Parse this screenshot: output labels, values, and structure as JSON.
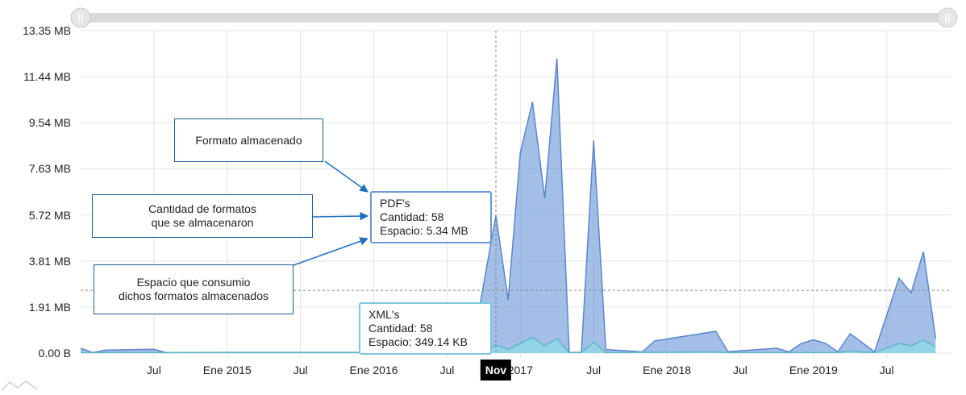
{
  "chart_data": {
    "type": "area",
    "y_ticks": [
      "0.00 B",
      "1.91 MB",
      "3.81 MB",
      "5.72 MB",
      "7.63 MB",
      "9.54 MB",
      "11.44 MB",
      "13.35 MB"
    ],
    "ylim_mb": [
      0,
      13.35
    ],
    "x_ticks": [
      "Jul",
      "Ene 2015",
      "Jul",
      "Ene 2016",
      "Jul",
      "Nov",
      "2017",
      "Jul",
      "Ene 2018",
      "Jul",
      "Ene 2019",
      "Jul"
    ],
    "grid": true,
    "series": [
      {
        "color": "#6c97d8",
        "points": [
          [
            "2014-01",
            0.2
          ],
          [
            "2014-02",
            0.02
          ],
          [
            "2014-03",
            0.12
          ],
          [
            "2014-05",
            0.14
          ],
          [
            "2014-07",
            0.16
          ],
          [
            "2014-08",
            0.02
          ],
          [
            "2015-01",
            0.03
          ],
          [
            "2016-09",
            0.03
          ],
          [
            "2016-11",
            5.7
          ],
          [
            "2016-12",
            2.2
          ],
          [
            "2017-01",
            8.3
          ],
          [
            "2017-02",
            10.4
          ],
          [
            "2017-03",
            6.4
          ],
          [
            "2017-04",
            12.2
          ],
          [
            "2017-05",
            0.03
          ],
          [
            "2017-06",
            0.03
          ],
          [
            "2017-07",
            8.8
          ],
          [
            "2017-08",
            0.15
          ],
          [
            "2017-11",
            0.05
          ],
          [
            "2017-12",
            0.5
          ],
          [
            "2018-05",
            0.9
          ],
          [
            "2018-06",
            0.06
          ],
          [
            "2018-10",
            0.2
          ],
          [
            "2018-11",
            0.05
          ],
          [
            "2018-12",
            0.4
          ],
          [
            "2019-01",
            0.55
          ],
          [
            "2019-02",
            0.4
          ],
          [
            "2019-03",
            0.05
          ],
          [
            "2019-04",
            0.8
          ],
          [
            "2019-06",
            0.05
          ],
          [
            "2019-08",
            3.1
          ],
          [
            "2019-09",
            2.5
          ],
          [
            "2019-10",
            4.2
          ],
          [
            "2019-11",
            0.6
          ]
        ]
      },
      {
        "color": "#8fd6e4",
        "points": [
          [
            "2014-01",
            0.02
          ],
          [
            "2016-10",
            0.02
          ],
          [
            "2016-11",
            0.34
          ],
          [
            "2016-12",
            0.15
          ],
          [
            "2017-02",
            0.65
          ],
          [
            "2017-03",
            0.3
          ],
          [
            "2017-04",
            0.6
          ],
          [
            "2017-05",
            0.02
          ],
          [
            "2017-06",
            0.02
          ],
          [
            "2017-07",
            0.45
          ],
          [
            "2017-08",
            0.02
          ],
          [
            "2018-05",
            0.05
          ],
          [
            "2018-06",
            0.02
          ],
          [
            "2019-03",
            0.02
          ],
          [
            "2019-04",
            0.08
          ],
          [
            "2019-06",
            0.02
          ],
          [
            "2019-08",
            0.4
          ],
          [
            "2019-09",
            0.3
          ],
          [
            "2019-10",
            0.55
          ],
          [
            "2019-11",
            0.25
          ]
        ]
      }
    ],
    "cursor": {
      "label": "Nov",
      "x": "2016-11",
      "y_mb": 2.6
    },
    "tooltips": {
      "pdf": {
        "title": "PDF's",
        "line1": "Cantidad: 58",
        "line2": "Espacio: 5.34 MB"
      },
      "xml": {
        "title": "XML's",
        "line1": "Cantidad: 58",
        "line2": "Espacio: 349.14 KB"
      }
    }
  },
  "annotations": {
    "formato": "Formato almacenado",
    "cantidad_1": "Cantidad de formatos",
    "cantidad_2": "que se almacenaron",
    "espacio_1": "Espacio que consumio",
    "espacio_2": "dichos formatos almacenados"
  }
}
